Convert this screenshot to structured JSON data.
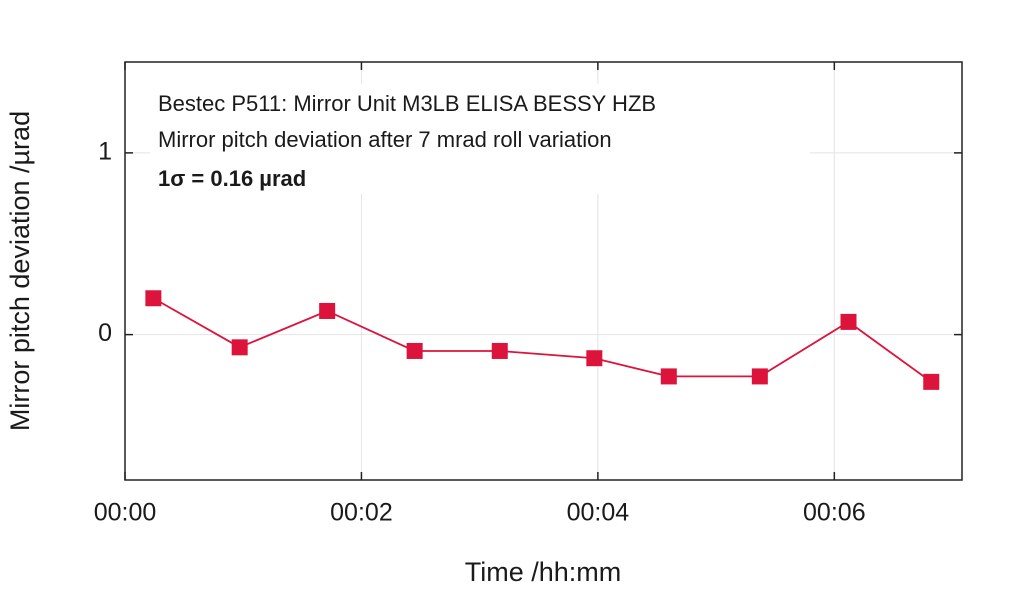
{
  "chart_data": {
    "type": "line",
    "annotations": [
      "Bestec P511: Mirror Unit M3LB ELISA BESSY HZB",
      "Mirror pitch deviation after 7 mrad roll variation",
      "1σ = 0.16 µrad"
    ],
    "x_label": "Time /hh:mm",
    "y_label": "Mirror pitch deviation /µrad",
    "x": [
      0.24,
      0.97,
      1.71,
      2.45,
      3.17,
      3.97,
      4.6,
      5.37,
      6.12,
      6.82
    ],
    "series": [
      {
        "color": "#dc143c",
        "values": [
          0.2,
          -0.07,
          0.13,
          -0.09,
          -0.09,
          -0.13,
          -0.23,
          -0.23,
          0.07,
          -0.26
        ]
      }
    ],
    "xlim": [
      0,
      7.08
    ],
    "ylim": [
      -0.8,
      1.5
    ],
    "xticks": [
      {
        "value": 0,
        "label": "00:00"
      },
      {
        "value": 2,
        "label": "00:02"
      },
      {
        "value": 4,
        "label": "00:04"
      },
      {
        "value": 6,
        "label": "00:06"
      }
    ],
    "yticks": [
      0,
      1
    ],
    "grid": true
  }
}
